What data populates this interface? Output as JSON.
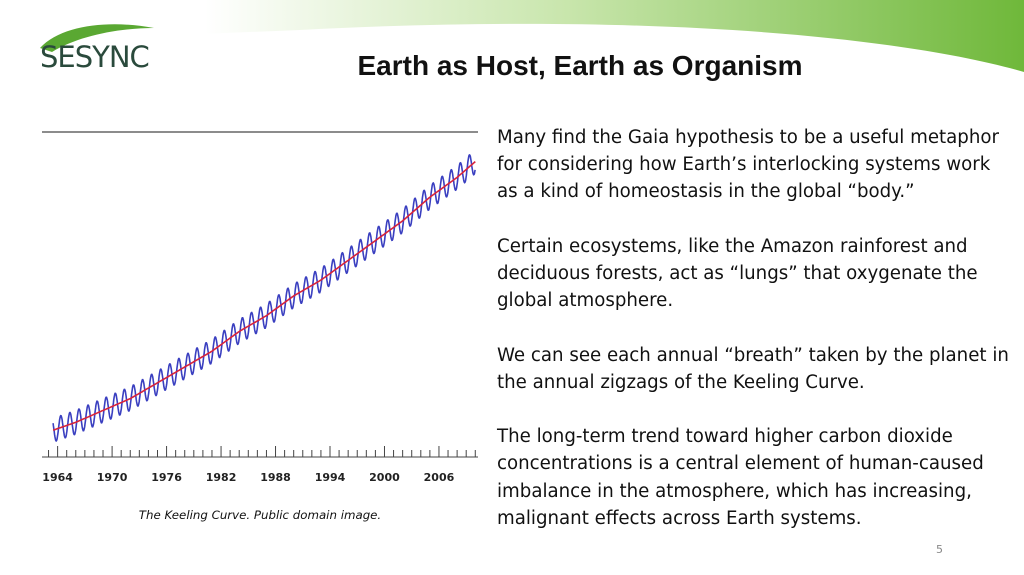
{
  "slide": {
    "title": "Earth as Host, Earth as Organism",
    "logo_text": "SESYNC",
    "paragraphs": [
      "Many find the Gaia hypothesis to be a useful metaphor for considering how Earth’s interlocking systems work as a kind of homeostasis in the global “body.”",
      "Certain ecosystems, like the Amazon rainforest and deciduous forests, act as “lungs” that oxygenate the global atmosphere.",
      "We can see each annual “breath” taken by the planet in the annual zigzags of the Keeling Curve.",
      "The long-term trend toward higher carbon dioxide concentrations is a central element of human-caused imbalance in the atmosphere, which has increasing, malignant effects across Earth systems."
    ],
    "caption": "The Keeling Curve. Public domain image.",
    "page_number": "5",
    "colors": {
      "banner_green": "#6fb83a",
      "logo_green": "#5aa832",
      "logo_text": "#2a4a3c"
    }
  },
  "chart_data": {
    "type": "line",
    "x_tick_labels": [
      "1964",
      "1970",
      "1976",
      "1982",
      "1988",
      "1994",
      "2000",
      "2006"
    ],
    "x_ticks": [
      1964,
      1970,
      1976,
      1982,
      1988,
      1994,
      2000,
      2006
    ],
    "xlim": [
      1962.5,
      2010.3
    ],
    "ylim": [
      315,
      395
    ],
    "grid": false,
    "series": [
      {
        "style": "seasonal",
        "color": "#3a3fc0",
        "x": [
          1963.5,
          1966,
          1969,
          1972,
          1975,
          1978,
          1981,
          1984,
          1987,
          1990,
          1993,
          1996,
          1999,
          2002,
          2005,
          2008,
          2010
        ],
        "values": [
          319,
          321,
          324,
          327,
          331,
          335,
          339,
          344,
          348,
          353,
          357,
          362,
          367,
          372,
          378,
          383,
          387
        ],
        "seasonal_amplitude": 3
      },
      {
        "style": "trend",
        "color": "#d8233a",
        "x": [
          1963.5,
          1966,
          1969,
          1972,
          1975,
          1978,
          1981,
          1984,
          1987,
          1990,
          1993,
          1996,
          1999,
          2002,
          2005,
          2008,
          2010
        ],
        "values": [
          319,
          321,
          324,
          327,
          331,
          335,
          339,
          344,
          348,
          353,
          357,
          362,
          367,
          372,
          378,
          383,
          387
        ]
      }
    ]
  }
}
